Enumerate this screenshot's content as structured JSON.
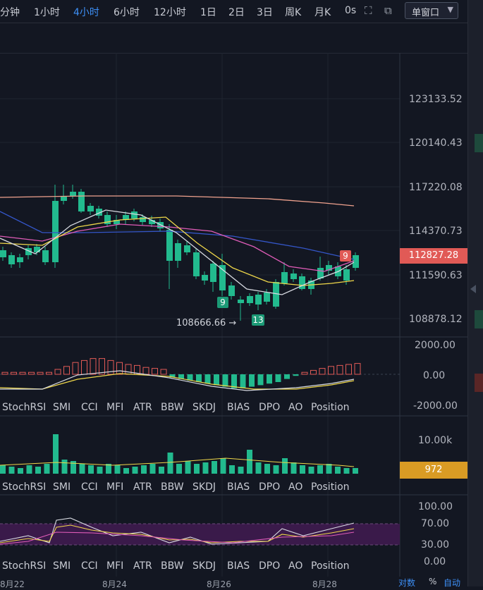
{
  "toolbar": {
    "timeframes": [
      "分钟",
      "1小时",
      "4小时",
      "6小时",
      "12小时",
      "1日",
      "2日",
      "3日",
      "周K",
      "月K",
      "0s"
    ],
    "active": "4小时",
    "window_mode": "单窗口"
  },
  "chart": {
    "price_axis": [
      "123133.52",
      "120140.43",
      "117220.08",
      "114370.73",
      "111590.63",
      "108878.12"
    ],
    "current_price": "112827.28",
    "low_annotation": "108666.66 →",
    "td_labels": {
      "nine_green": "9",
      "thirteen_green": "13",
      "nine_red": "9"
    },
    "colors": {
      "up": "#e15a56",
      "down": "#22ba8e",
      "ma_white": "#d8dbe2",
      "ma_yellow": "#f0d84a",
      "ma_pink": "#e05cb8",
      "ma_blue": "#3456c8",
      "ma_salmon": "#f0a28e"
    }
  },
  "macd": {
    "axis": [
      "2000.00",
      "0.00",
      "-2000.00"
    ]
  },
  "volume": {
    "axis": [
      "10.00k"
    ],
    "current": "972"
  },
  "stochrsi": {
    "axis": [
      "100.00",
      "70.00",
      "30.00",
      "0.00"
    ]
  },
  "indicator_tabs": [
    "StochRSI",
    "SMI",
    "CCI",
    "MFI",
    "ATR",
    "BBW",
    "SKDJ",
    "BIAS",
    "DPO",
    "AO",
    "Position"
  ],
  "dates": [
    "8月22",
    "8月24",
    "8月26",
    "8月28"
  ],
  "footer": {
    "log": "对数",
    "percent": "%",
    "auto": "自动"
  }
}
